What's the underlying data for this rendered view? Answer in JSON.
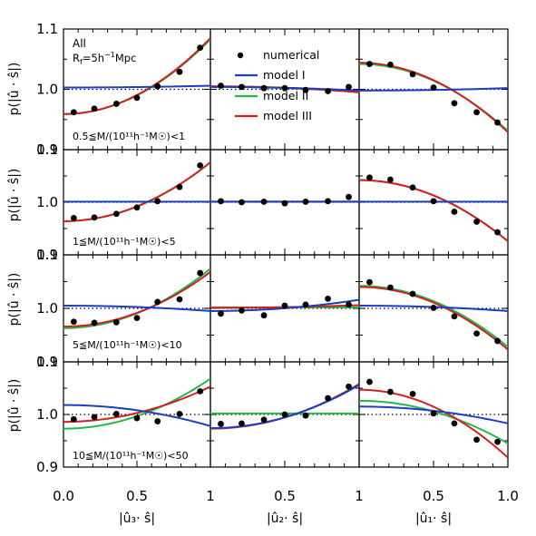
{
  "figure": {
    "annotation_all": "All",
    "annotation_rf": "R_f=5h^-1 Mpc",
    "legend": {
      "numerical": "numerical",
      "model1": "model I",
      "model2": "model II",
      "model3": "model III"
    },
    "row_labels": [
      "0.5≦M/(10¹¹h⁻¹M☉)<1",
      "1≦M/(10¹¹h⁻¹M☉)<5",
      "5≦M/(10¹¹h⁻¹M☉)<10",
      "10≦M/(10¹¹h⁻¹M☉)<50"
    ],
    "ylabel": "p(|û · ŝ|)",
    "col_xlabels": [
      "|û₃· ŝ|",
      "|û₂· ŝ|",
      "|û₁· ŝ|"
    ],
    "xticks": [
      "0.0",
      "0.5",
      "1",
      "0.0",
      "0.5",
      "0.0",
      "0.5",
      "1.0"
    ],
    "xticks_col3_end": "1.0",
    "colors": {
      "numerical": "#000000",
      "model1": "#1a3fc0",
      "model2": "#22b84a",
      "model3": "#d41f1f",
      "reference": "#000000"
    }
  },
  "chart_data": {
    "type": "scatter",
    "layout": "4 rows x 3 columns",
    "xlim": [
      0,
      1
    ],
    "ylim": [
      0.9,
      1.1
    ],
    "yticks": [
      "0.9",
      "1.0",
      "1.1"
    ],
    "reference_line": 1.0,
    "x": [
      0.07,
      0.21,
      0.36,
      0.5,
      0.64,
      0.79,
      0.93
    ],
    "panels": [
      {
        "row": 0,
        "col": 0,
        "points": [
          0.962,
          0.968,
          0.976,
          0.986,
          1.005,
          1.029,
          1.069
        ],
        "model1": [
          1.003,
          1.006
        ],
        "model2": [
          0.959,
          1.083
        ],
        "model3": [
          0.959,
          1.085
        ]
      },
      {
        "row": 0,
        "col": 1,
        "points": [
          1.006,
          1.004,
          1.002,
          1.002,
          0.999,
          0.997,
          1.004
        ],
        "model1": [
          1.004,
          0.998
        ],
        "model2": [
          1.004,
          0.996
        ],
        "model3": [
          1.005,
          0.995
        ]
      },
      {
        "row": 0,
        "col": 2,
        "points": [
          1.042,
          1.041,
          1.025,
          1.003,
          0.977,
          0.962,
          0.945
        ],
        "model1": [
          0.998,
          1.002
        ],
        "model2": [
          1.042,
          0.931
        ],
        "model3": [
          1.044,
          0.929
        ]
      },
      {
        "row": 1,
        "col": 0,
        "points": [
          0.97,
          0.971,
          0.978,
          0.99,
          1.002,
          1.029,
          1.07
        ],
        "model1": [
          1.001,
          1.001
        ],
        "model2": [
          0.964,
          1.076
        ],
        "model3": [
          0.964,
          1.076
        ]
      },
      {
        "row": 1,
        "col": 1,
        "points": [
          1.002,
          1.0,
          1.001,
          0.998,
          1.001,
          1.002,
          1.01
        ],
        "model1": [
          1.001,
          1.001
        ],
        "model2": [
          1.001,
          1.001
        ],
        "model3": [
          1.001,
          1.001
        ]
      },
      {
        "row": 1,
        "col": 2,
        "points": [
          1.047,
          1.043,
          1.028,
          1.002,
          0.982,
          0.963,
          0.943
        ],
        "model1": [
          1.001,
          1.001
        ],
        "model2": [
          1.042,
          0.926
        ],
        "model3": [
          1.042,
          0.926
        ]
      },
      {
        "row": 2,
        "col": 0,
        "points": [
          0.975,
          0.973,
          0.974,
          0.982,
          1.012,
          1.017,
          1.066
        ],
        "model1": [
          1.005,
          0.995
        ],
        "model2": [
          0.963,
          1.074
        ],
        "model3": [
          0.966,
          1.068
        ]
      },
      {
        "row": 2,
        "col": 1,
        "points": [
          0.99,
          0.996,
          0.987,
          1.005,
          1.007,
          1.018,
          1.007
        ],
        "model1": [
          0.995,
          1.016
        ],
        "model2": [
          1.002,
          1.002
        ],
        "model3": [
          1.001,
          1.006
        ]
      },
      {
        "row": 2,
        "col": 2,
        "points": [
          1.049,
          1.039,
          1.027,
          1.001,
          0.985,
          0.953,
          0.939
        ],
        "model1": [
          1.005,
          0.995
        ],
        "model2": [
          1.042,
          0.928
        ],
        "model3": [
          1.04,
          0.923
        ]
      },
      {
        "row": 3,
        "col": 0,
        "points": [
          0.991,
          0.995,
          1.001,
          0.993,
          0.987,
          1.001,
          1.044
        ],
        "model1": [
          1.018,
          0.978
        ],
        "model2": [
          0.973,
          1.068
        ],
        "model3": [
          0.986,
          1.053
        ]
      },
      {
        "row": 3,
        "col": 1,
        "points": [
          0.982,
          0.983,
          0.99,
          1.0,
          0.998,
          1.031,
          1.053
        ],
        "model1": [
          0.974,
          1.056
        ],
        "model2": [
          1.002,
          1.002
        ],
        "model3": [
          0.973,
          1.058
        ]
      },
      {
        "row": 3,
        "col": 2,
        "points": [
          1.062,
          1.043,
          1.039,
          1.002,
          0.983,
          0.952,
          0.948
        ],
        "model1": [
          1.015,
          0.983
        ],
        "model2": [
          1.026,
          0.945
        ],
        "model3": [
          1.047,
          0.918
        ]
      }
    ]
  }
}
